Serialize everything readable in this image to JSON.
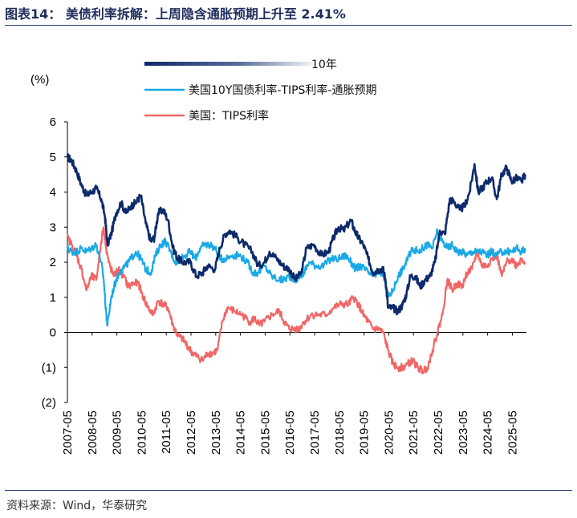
{
  "header": {
    "title": "图表14：   美债利率拆解：上周隐含通胀预期上升至 2.41%"
  },
  "footer": {
    "source": "资料来源：Wind，华泰研究"
  },
  "colors": {
    "series_10y": "#0d2a6b",
    "series_breakeven": "#19a9e6",
    "series_tips": "#f06666",
    "axis": "#000000"
  },
  "chart_data": {
    "type": "line",
    "ylabel": "(%)",
    "ylim": [
      -2,
      6
    ],
    "yticks": [
      6,
      5,
      4,
      3,
      2,
      1,
      0,
      -1,
      -2
    ],
    "yticklabels": [
      "6",
      "5",
      "4",
      "3",
      "2",
      "1",
      "0",
      "(1)",
      "(2)"
    ],
    "xticklabels": [
      "2007-05",
      "2008-05",
      "2009-05",
      "2010-05",
      "2011-05",
      "2012-05",
      "2013-05",
      "2014-05",
      "2015-05",
      "2016-05",
      "2017-05",
      "2018-05",
      "2019-05",
      "2020-05",
      "2021-05",
      "2022-05",
      "2023-05",
      "2024-05",
      "2025-05"
    ],
    "xlim": [
      2007.33,
      2025.9
    ],
    "legend_position": "top-left",
    "series": [
      {
        "name": "10年",
        "x": [
          2007.33,
          2007.5,
          2007.7,
          2007.9,
          2008.1,
          2008.3,
          2008.5,
          2008.7,
          2008.85,
          2008.95,
          2009.1,
          2009.3,
          2009.5,
          2009.7,
          2009.9,
          2010.1,
          2010.3,
          2010.5,
          2010.7,
          2010.85,
          2011.0,
          2011.2,
          2011.4,
          2011.6,
          2011.8,
          2012.0,
          2012.3,
          2012.55,
          2012.8,
          2013.0,
          2013.3,
          2013.5,
          2013.7,
          2013.9,
          2014.2,
          2014.5,
          2014.8,
          2015.05,
          2015.3,
          2015.5,
          2015.8,
          2016.05,
          2016.3,
          2016.55,
          2016.8,
          2017.0,
          2017.3,
          2017.6,
          2017.9,
          2018.1,
          2018.3,
          2018.5,
          2018.8,
          2018.95,
          2019.1,
          2019.3,
          2019.5,
          2019.7,
          2019.9,
          2020.1,
          2020.2,
          2020.3,
          2020.5,
          2020.7,
          2020.9,
          2021.05,
          2021.2,
          2021.4,
          2021.6,
          2021.8,
          2022.0,
          2022.2,
          2022.4,
          2022.6,
          2022.8,
          2023.0,
          2023.2,
          2023.4,
          2023.6,
          2023.8,
          2023.95,
          2024.1,
          2024.3,
          2024.5,
          2024.7,
          2024.9,
          2025.1,
          2025.3,
          2025.5,
          2025.7,
          2025.85
        ],
        "y": [
          5.0,
          4.9,
          4.6,
          4.2,
          3.9,
          4.0,
          4.1,
          3.8,
          3.3,
          2.5,
          2.8,
          3.4,
          3.7,
          3.4,
          3.6,
          3.7,
          3.9,
          3.1,
          2.6,
          2.7,
          3.4,
          3.5,
          3.2,
          2.4,
          2.1,
          2.0,
          2.0,
          1.6,
          1.7,
          1.9,
          1.8,
          2.4,
          2.8,
          2.9,
          2.7,
          2.5,
          2.3,
          1.9,
          2.0,
          2.3,
          2.1,
          1.9,
          1.8,
          1.5,
          1.7,
          2.4,
          2.5,
          2.2,
          2.3,
          2.7,
          3.0,
          2.9,
          3.2,
          2.9,
          2.7,
          2.5,
          2.1,
          1.7,
          1.8,
          1.8,
          1.5,
          0.7,
          0.7,
          0.6,
          0.8,
          1.1,
          1.6,
          1.6,
          1.3,
          1.5,
          1.6,
          2.0,
          2.9,
          2.8,
          3.8,
          3.7,
          3.5,
          3.6,
          4.0,
          4.8,
          4.0,
          4.1,
          4.3,
          4.4,
          3.8,
          4.5,
          4.7,
          4.3,
          4.4,
          4.3,
          4.5
        ]
      },
      {
        "name": "美国10Y国债利率-TIPS利率-通胀预期",
        "x": [
          2007.33,
          2007.5,
          2007.7,
          2007.9,
          2008.1,
          2008.3,
          2008.5,
          2008.7,
          2008.8,
          2008.9,
          2008.95,
          2009.1,
          2009.3,
          2009.5,
          2009.7,
          2009.9,
          2010.1,
          2010.3,
          2010.5,
          2010.7,
          2010.9,
          2011.1,
          2011.3,
          2011.5,
          2011.7,
          2011.9,
          2012.1,
          2012.3,
          2012.5,
          2012.7,
          2012.9,
          2013.1,
          2013.3,
          2013.5,
          2013.7,
          2014.0,
          2014.3,
          2014.6,
          2014.85,
          2015.05,
          2015.3,
          2015.6,
          2015.9,
          2016.1,
          2016.3,
          2016.6,
          2016.9,
          2017.1,
          2017.4,
          2017.7,
          2018.0,
          2018.3,
          2018.6,
          2018.8,
          2019.0,
          2019.2,
          2019.5,
          2019.7,
          2019.9,
          2020.1,
          2020.2,
          2020.3,
          2020.5,
          2020.7,
          2020.9,
          2021.1,
          2021.3,
          2021.5,
          2021.7,
          2021.9,
          2022.1,
          2022.3,
          2022.5,
          2022.7,
          2022.9,
          2023.1,
          2023.3,
          2023.5,
          2023.7,
          2023.9,
          2024.1,
          2024.3,
          2024.5,
          2024.7,
          2024.9,
          2025.1,
          2025.3,
          2025.5,
          2025.7,
          2025.85
        ],
        "y": [
          2.4,
          2.3,
          2.3,
          2.4,
          2.3,
          2.4,
          2.5,
          2.0,
          1.5,
          0.5,
          0.2,
          1.0,
          1.5,
          1.8,
          1.9,
          2.1,
          2.3,
          2.1,
          1.8,
          1.7,
          2.2,
          2.5,
          2.6,
          2.3,
          2.0,
          2.1,
          2.2,
          2.3,
          2.1,
          2.4,
          2.5,
          2.5,
          2.4,
          2.1,
          2.1,
          2.2,
          2.2,
          2.0,
          1.7,
          1.7,
          1.9,
          1.6,
          1.5,
          1.5,
          1.6,
          1.5,
          1.7,
          2.0,
          1.9,
          1.9,
          2.1,
          2.1,
          2.2,
          2.0,
          1.8,
          1.9,
          1.7,
          1.6,
          1.7,
          1.7,
          1.4,
          1.0,
          1.2,
          1.6,
          1.8,
          2.1,
          2.4,
          2.3,
          2.4,
          2.5,
          2.4,
          2.9,
          2.6,
          2.4,
          2.5,
          2.3,
          2.3,
          2.2,
          2.3,
          2.3,
          2.3,
          2.2,
          2.3,
          2.2,
          2.3,
          2.3,
          2.3,
          2.4,
          2.3,
          2.4
        ]
      },
      {
        "name": "美国：TIPS利率",
        "x": [
          2007.33,
          2007.5,
          2007.7,
          2007.9,
          2008.1,
          2008.3,
          2008.5,
          2008.7,
          2008.8,
          2008.9,
          2009.0,
          2009.2,
          2009.4,
          2009.6,
          2009.8,
          2010.0,
          2010.2,
          2010.4,
          2010.6,
          2010.8,
          2011.0,
          2011.2,
          2011.4,
          2011.6,
          2011.8,
          2012.0,
          2012.2,
          2012.4,
          2012.6,
          2012.8,
          2013.0,
          2013.2,
          2013.4,
          2013.6,
          2013.8,
          2014.1,
          2014.4,
          2014.7,
          2014.9,
          2015.1,
          2015.3,
          2015.6,
          2015.9,
          2016.1,
          2016.3,
          2016.5,
          2016.7,
          2016.9,
          2017.2,
          2017.5,
          2017.8,
          2018.1,
          2018.4,
          2018.7,
          2018.9,
          2019.1,
          2019.3,
          2019.5,
          2019.7,
          2019.9,
          2020.1,
          2020.3,
          2020.5,
          2020.7,
          2020.9,
          2021.1,
          2021.3,
          2021.5,
          2021.7,
          2021.9,
          2022.1,
          2022.3,
          2022.5,
          2022.7,
          2022.9,
          2023.1,
          2023.3,
          2023.5,
          2023.7,
          2023.9,
          2024.1,
          2024.3,
          2024.5,
          2024.7,
          2024.9,
          2025.1,
          2025.3,
          2025.5,
          2025.7,
          2025.85
        ],
        "y": [
          2.7,
          2.5,
          2.2,
          1.8,
          1.2,
          1.6,
          1.5,
          2.6,
          3.0,
          2.4,
          2.0,
          1.6,
          1.8,
          1.6,
          1.3,
          1.4,
          1.4,
          1.0,
          0.7,
          0.5,
          0.9,
          0.8,
          0.7,
          0.2,
          -0.1,
          -0.2,
          -0.4,
          -0.6,
          -0.7,
          -0.8,
          -0.6,
          -0.6,
          -0.5,
          0.3,
          0.7,
          0.6,
          0.5,
          0.3,
          0.4,
          0.2,
          0.3,
          0.5,
          0.6,
          0.3,
          0.1,
          0.1,
          0.1,
          0.3,
          0.5,
          0.5,
          0.5,
          0.7,
          0.8,
          0.8,
          1.0,
          0.8,
          0.5,
          0.3,
          0.1,
          0.1,
          0.0,
          -0.5,
          -0.9,
          -1.0,
          -1.0,
          -0.9,
          -0.8,
          -1.0,
          -1.1,
          -1.0,
          -0.5,
          0.0,
          0.5,
          1.5,
          1.2,
          1.4,
          1.3,
          1.7,
          1.8,
          2.3,
          1.9,
          1.9,
          2.1,
          2.2,
          1.6,
          2.0,
          2.1,
          1.9,
          2.1,
          2.0
        ]
      }
    ]
  }
}
